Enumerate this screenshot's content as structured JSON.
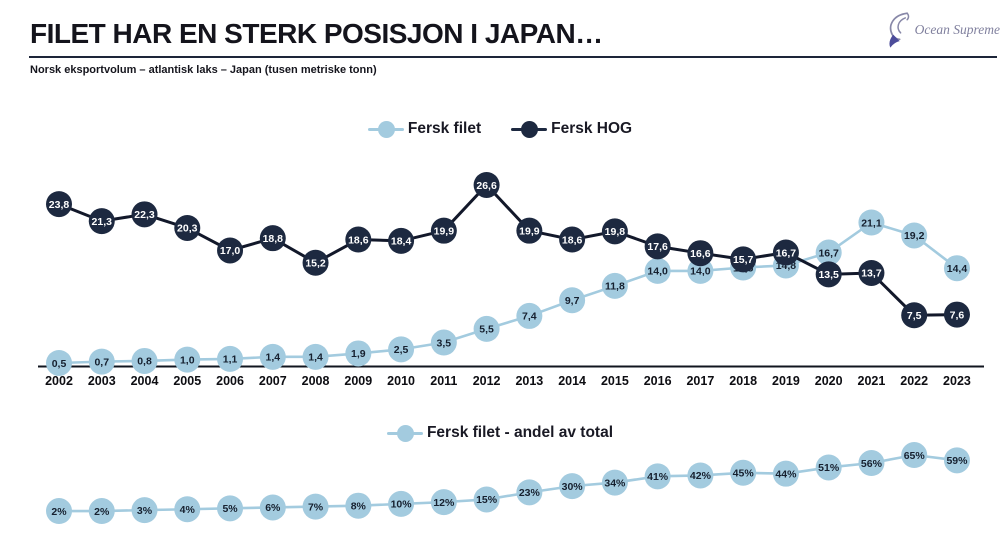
{
  "header": {
    "title": "FILET HAR EN STERK POSISJON I JAPAN…",
    "subtitle": "Norsk eksportvolum – atlantisk laks – Japan (tusen metriske tonn)",
    "logo_text": "Ocean Supreme"
  },
  "colors": {
    "filet_blue": "#a3cbdf",
    "hog_navy": "#1d2940",
    "hog_line": "#12182a",
    "axis": "#10151f",
    "text_dark": "#14141c",
    "label_on_light": "#16202f",
    "label_on_dark": "#ffffff",
    "logo_grey": "#80809e",
    "logo_purple": "#4c4c9a"
  },
  "chart_data": [
    {
      "type": "line",
      "title": "Norsk eksportvolum – atlantisk laks – Japan (tusen metriske tonn)",
      "xlabel": "",
      "ylabel": "",
      "ylim": [
        0,
        28
      ],
      "grid": false,
      "legend_position": "top",
      "categories": [
        "2002",
        "2003",
        "2004",
        "2005",
        "2006",
        "2007",
        "2008",
        "2009",
        "2010",
        "2011",
        "2012",
        "2013",
        "2014",
        "2015",
        "2016",
        "2017",
        "2018",
        "2019",
        "2020",
        "2021",
        "2022",
        "2023"
      ],
      "series": [
        {
          "name": "Fersk filet",
          "color": "#a3cbdf",
          "line_color": "#a3cbdf",
          "line_width": 2.6,
          "label_color": "#16202f",
          "values": [
            0.5,
            0.7,
            0.8,
            1.0,
            1.1,
            1.4,
            1.4,
            1.9,
            2.5,
            3.5,
            5.5,
            7.4,
            9.7,
            11.8,
            14.0,
            14.0,
            14.5,
            14.8,
            16.7,
            21.1,
            19.2,
            14.4
          ],
          "labels": [
            "0,5",
            "0,7",
            "0,8",
            "1,0",
            "1,1",
            "1,4",
            "1,4",
            "1,9",
            "2,5",
            "3,5",
            "5,5",
            "7,4",
            "9,7",
            "11,8",
            "14,0",
            "14,0",
            "14,5",
            "14,8",
            "16,7",
            "21,1",
            "19,2",
            "14,4"
          ]
        },
        {
          "name": "Fersk HOG",
          "color": "#1d2940",
          "line_color": "#12182a",
          "line_width": 3,
          "label_color": "#ffffff",
          "values": [
            23.8,
            21.3,
            22.3,
            20.3,
            17.0,
            18.8,
            15.2,
            18.6,
            18.4,
            19.9,
            26.6,
            19.9,
            18.6,
            19.8,
            17.6,
            16.6,
            15.7,
            16.7,
            13.5,
            13.7,
            7.5,
            7.6
          ],
          "labels": [
            "23,8",
            "21,3",
            "22,3",
            "20,3",
            "17,0",
            "18,8",
            "15,2",
            "18,6",
            "18,4",
            "19,9",
            "26,6",
            "19,9",
            "18,6",
            "19,8",
            "17,6",
            "16,6",
            "15,7",
            "16,7",
            "13,5",
            "13,7",
            "7,5",
            "7,6"
          ]
        }
      ]
    },
    {
      "type": "line",
      "title": "",
      "xlabel": "",
      "ylabel": "",
      "ylim": [
        0,
        70
      ],
      "grid": false,
      "legend_position": "top",
      "categories": [
        "2002",
        "2003",
        "2004",
        "2005",
        "2006",
        "2007",
        "2008",
        "2009",
        "2010",
        "2011",
        "2012",
        "2013",
        "2014",
        "2015",
        "2016",
        "2017",
        "2018",
        "2019",
        "2020",
        "2021",
        "2022",
        "2023"
      ],
      "series": [
        {
          "name": "Fersk filet - andel av total",
          "color": "#a3cbdf",
          "line_color": "#a3cbdf",
          "line_width": 2.6,
          "label_color": "#16202f",
          "values": [
            2,
            2,
            3,
            4,
            5,
            6,
            7,
            8,
            10,
            12,
            15,
            23,
            30,
            34,
            41,
            42,
            45,
            44,
            51,
            56,
            65,
            59
          ],
          "labels": [
            "2%",
            "2%",
            "3%",
            "4%",
            "5%",
            "6%",
            "7%",
            "8%",
            "10%",
            "12%",
            "15%",
            "23%",
            "30%",
            "34%",
            "41%",
            "42%",
            "45%",
            "44%",
            "51%",
            "56%",
            "65%",
            "59%"
          ]
        }
      ]
    }
  ]
}
